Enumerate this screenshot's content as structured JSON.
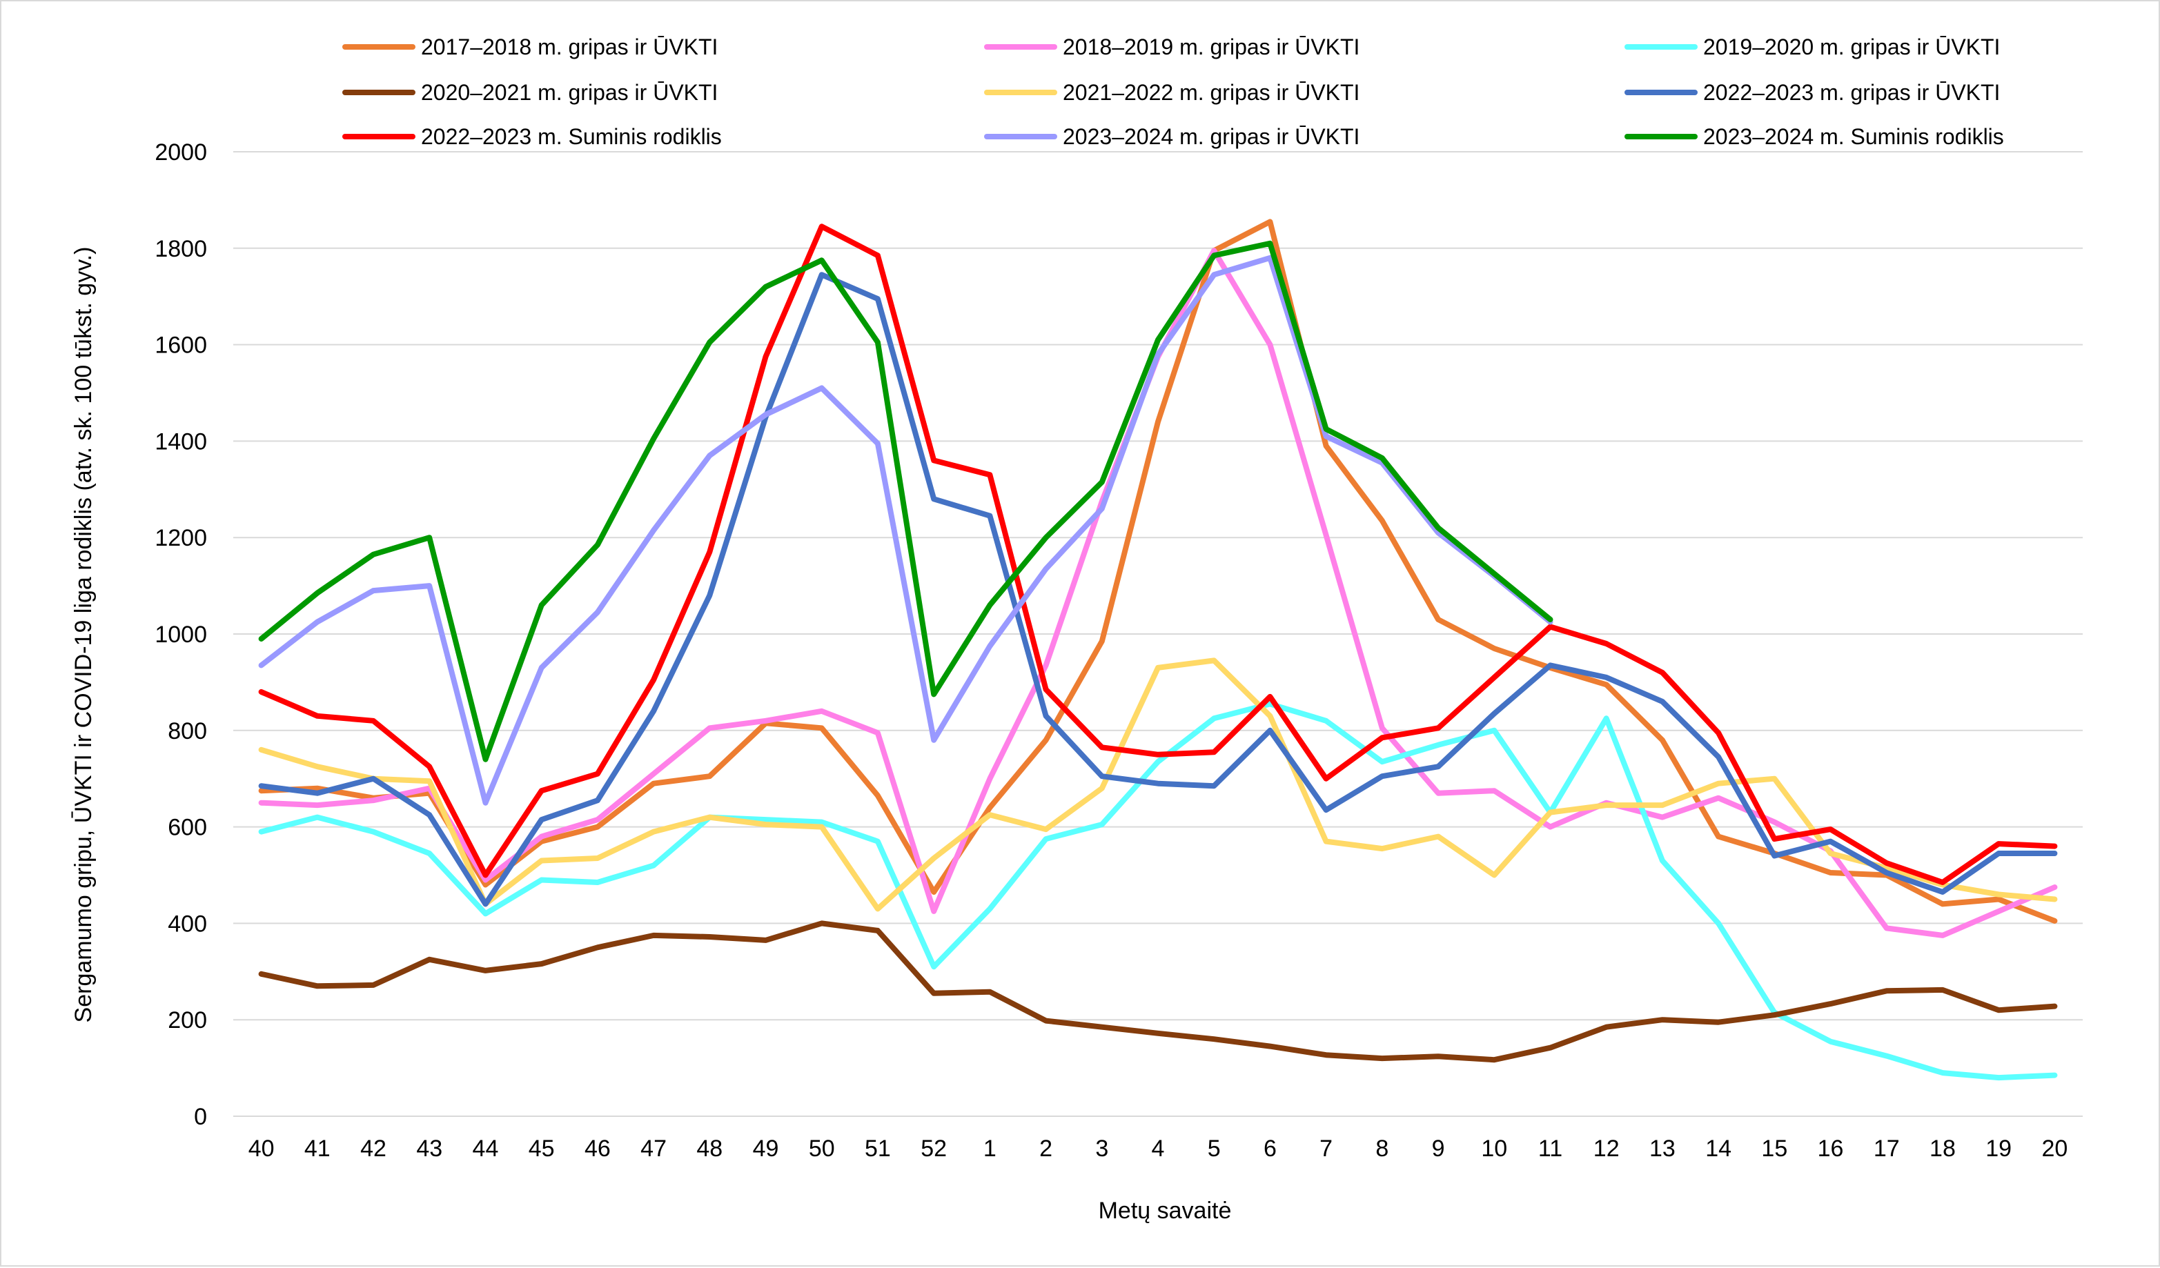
{
  "chart_data": {
    "type": "line",
    "title": "",
    "xlabel": "Metų savaitė",
    "ylabel": "Sergamumo gripu, ŪVKTI ir COVID-19 liga rodiklis (atv. sk. 100 tūkst. gyv.)",
    "ylim": [
      0,
      2000
    ],
    "yticks": [
      "0",
      "200",
      "400",
      "600",
      "800",
      "1000",
      "1200",
      "1400",
      "1600",
      "1800",
      "2000"
    ],
    "grid": "horizontal",
    "legend_position": "top",
    "categories": [
      "40",
      "41",
      "42",
      "43",
      "44",
      "45",
      "46",
      "47",
      "48",
      "49",
      "50",
      "51",
      "52",
      "1",
      "2",
      "3",
      "4",
      "5",
      "6",
      "7",
      "8",
      "9",
      "10",
      "11",
      "12",
      "13",
      "14",
      "15",
      "16",
      "17",
      "18",
      "19",
      "20"
    ],
    "series": [
      {
        "name": "2017–2018 m. gripas ir ŪVKTI",
        "color": "#ED7D31",
        "values": [
          675,
          680,
          660,
          670,
          480,
          570,
          600,
          690,
          705,
          815,
          805,
          665,
          465,
          640,
          780,
          985,
          1440,
          1795,
          1855,
          1390,
          1235,
          1030,
          970,
          930,
          895,
          780,
          580,
          545,
          505,
          500,
          440,
          450,
          405
        ]
      },
      {
        "name": "2018–2019 m. gripas ir ŪVKTI",
        "color": "#FF80E8",
        "values": [
          650,
          645,
          655,
          680,
          490,
          580,
          615,
          710,
          805,
          820,
          840,
          795,
          425,
          700,
          935,
          1275,
          1575,
          1795,
          1600,
          1205,
          805,
          670,
          675,
          600,
          650,
          620,
          660,
          610,
          550,
          390,
          375,
          425,
          475
        ]
      },
      {
        "name": "2019–2020 m. gripas ir ŪVKTI",
        "color": "#5CFFFF",
        "values": [
          590,
          620,
          590,
          545,
          420,
          490,
          485,
          520,
          620,
          615,
          610,
          570,
          310,
          430,
          575,
          605,
          735,
          825,
          855,
          820,
          735,
          770,
          800,
          630,
          825,
          530,
          400,
          215,
          155,
          125,
          90,
          80,
          85
        ]
      },
      {
        "name": "2020–2021 m. gripas ir ŪVKTI",
        "color": "#843C0C",
        "values": [
          295,
          270,
          272,
          325,
          302,
          316,
          350,
          375,
          372,
          365,
          400,
          385,
          255,
          258,
          198,
          185,
          172,
          160,
          145,
          127,
          120,
          124,
          117,
          142,
          185,
          200,
          195,
          210,
          233,
          260,
          262,
          220,
          228
        ]
      },
      {
        "name": "2021–2022 m. gripas ir ŪVKTI",
        "color": "#FFD966",
        "values": [
          760,
          725,
          700,
          695,
          440,
          530,
          535,
          590,
          620,
          605,
          600,
          430,
          535,
          625,
          595,
          680,
          930,
          945,
          830,
          570,
          555,
          580,
          500,
          630,
          645,
          645,
          690,
          700,
          545,
          515,
          480,
          460,
          450
        ]
      },
      {
        "name": "2022–2023 m. gripas ir ŪVKTI",
        "color": "#4472C4",
        "values": [
          685,
          670,
          700,
          625,
          440,
          615,
          655,
          840,
          1080,
          1450,
          1745,
          1695,
          1280,
          1245,
          830,
          705,
          690,
          685,
          800,
          635,
          705,
          725,
          835,
          935,
          910,
          860,
          745,
          540,
          570,
          505,
          465,
          545,
          545
        ]
      },
      {
        "name": "2022–2023 m. Suminis rodiklis",
        "color": "#FF0000",
        "values": [
          880,
          830,
          820,
          725,
          500,
          675,
          710,
          905,
          1170,
          1575,
          1845,
          1785,
          1360,
          1330,
          885,
          765,
          750,
          755,
          870,
          700,
          785,
          805,
          910,
          1015,
          980,
          920,
          795,
          575,
          595,
          525,
          485,
          565,
          560
        ]
      },
      {
        "name": "2023–2024 m. gripas ir ŪVKTI",
        "color": "#9999FF",
        "values": [
          935,
          1025,
          1090,
          1100,
          650,
          930,
          1045,
          1215,
          1370,
          1455,
          1510,
          1395,
          780,
          975,
          1135,
          1260,
          1580,
          1745,
          1780,
          1410,
          1355,
          1210,
          1120,
          1025,
          null,
          null,
          null,
          null,
          null,
          null,
          null,
          null,
          null
        ]
      },
      {
        "name": "2023–2024 m. Suminis rodiklis",
        "color": "#009900",
        "values": [
          990,
          1085,
          1165,
          1200,
          740,
          1060,
          1185,
          1405,
          1605,
          1720,
          1775,
          1605,
          875,
          1060,
          1200,
          1315,
          1610,
          1785,
          1810,
          1425,
          1365,
          1220,
          1125,
          1030,
          null,
          null,
          null,
          null,
          null,
          null,
          null,
          null,
          null
        ]
      }
    ]
  }
}
